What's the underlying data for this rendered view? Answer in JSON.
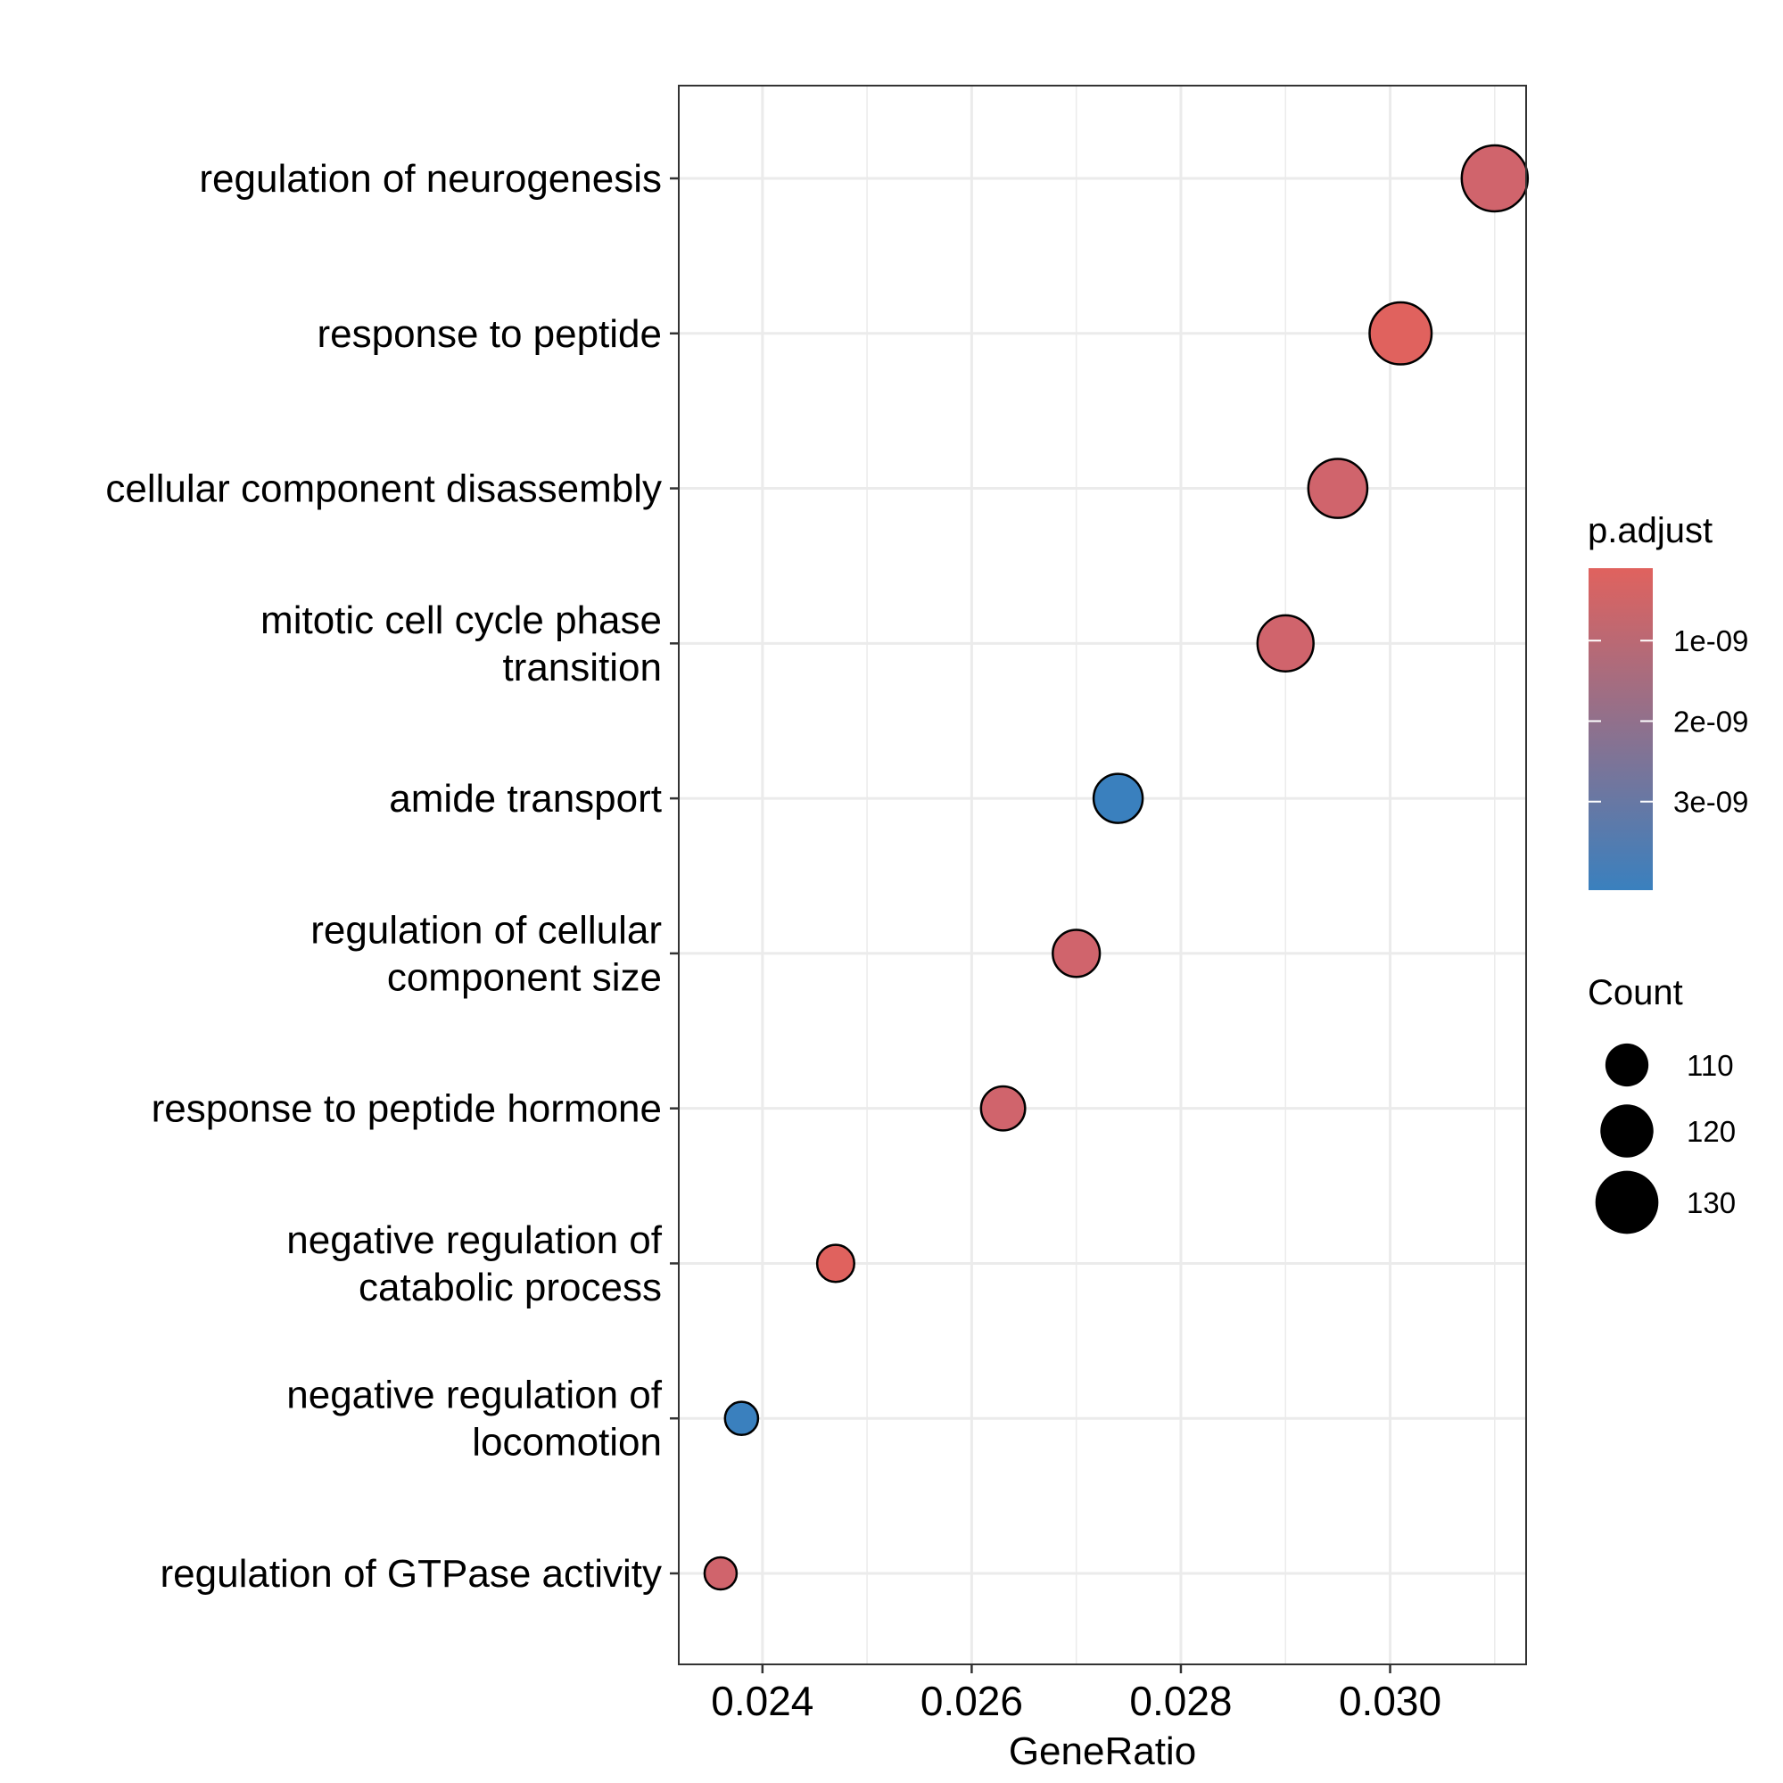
{
  "chart_data": {
    "type": "scatter",
    "xlabel": "GeneRatio",
    "ylabel": "",
    "xlim": [
      0.0232,
      0.0313
    ],
    "x_ticks": [
      {
        "value": 0.024,
        "label": "0.024"
      },
      {
        "value": 0.026,
        "label": "0.026"
      },
      {
        "value": 0.028,
        "label": "0.028"
      },
      {
        "value": 0.03,
        "label": "0.030"
      }
    ],
    "grid": true,
    "points": [
      {
        "category": [
          "regulation of neurogenesis"
        ],
        "x": 0.031,
        "count": 133,
        "p_adjust": 1.3e-09,
        "color": "#d0646c"
      },
      {
        "category": [
          "response to peptide"
        ],
        "x": 0.0301,
        "count": 129,
        "p_adjust": 6e-10,
        "color": "#e0625e"
      },
      {
        "category": [
          "cellular component disassembly"
        ],
        "x": 0.0295,
        "count": 126,
        "p_adjust": 1.3e-09,
        "color": "#d0646c"
      },
      {
        "category": [
          "mitotic cell cycle phase",
          "transition"
        ],
        "x": 0.029,
        "count": 123,
        "p_adjust": 1.3e-09,
        "color": "#d0646c"
      },
      {
        "category": [
          "amide transport"
        ],
        "x": 0.0274,
        "count": 116,
        "p_adjust": 4e-09,
        "color": "#3a80be"
      },
      {
        "category": [
          "regulation of cellular",
          "component size"
        ],
        "x": 0.027,
        "count": 114,
        "p_adjust": 1.3e-09,
        "color": "#d0646c"
      },
      {
        "category": [
          "response to peptide hormone"
        ],
        "x": 0.0263,
        "count": 111,
        "p_adjust": 1.3e-09,
        "color": "#d0646c"
      },
      {
        "category": [
          "negative regulation of",
          "catabolic process"
        ],
        "x": 0.0247,
        "count": 104,
        "p_adjust": 6e-10,
        "color": "#e0625e"
      },
      {
        "category": [
          "negative regulation of",
          "locomotion"
        ],
        "x": 0.0238,
        "count": 100,
        "p_adjust": 4e-09,
        "color": "#3a80be"
      },
      {
        "category": [
          "regulation of GTPase activity"
        ],
        "x": 0.0236,
        "count": 99,
        "p_adjust": 1.3e-09,
        "color": "#d0646c"
      }
    ],
    "legend_color": {
      "title": "p.adjust",
      "gradient_top": "#e0625e",
      "gradient_bottom": "#3a80be",
      "range": [
        1e-10,
        4.1e-09
      ],
      "ticks": [
        {
          "value": 1e-09,
          "label": "1e-09"
        },
        {
          "value": 2e-09,
          "label": "2e-09"
        },
        {
          "value": 3e-09,
          "label": "3e-09"
        }
      ]
    },
    "legend_size": {
      "title": "Count",
      "entries": [
        {
          "value": 110,
          "label": "110"
        },
        {
          "value": 120,
          "label": "120"
        },
        {
          "value": 130,
          "label": "130"
        }
      ]
    },
    "legend_position": "right"
  }
}
